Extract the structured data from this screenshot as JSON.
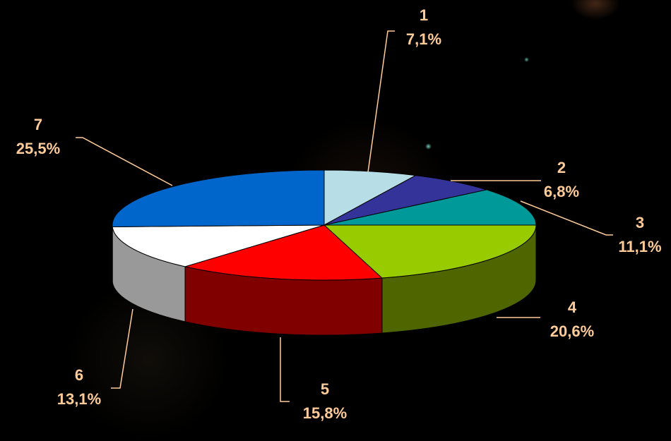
{
  "chart_data": {
    "type": "pie",
    "style": "3d",
    "categories": [
      "1",
      "2",
      "3",
      "4",
      "5",
      "6",
      "7"
    ],
    "values": [
      7.1,
      6.8,
      11.1,
      20.6,
      15.8,
      13.1,
      25.5
    ],
    "value_labels": [
      "7,1%",
      "6,8%",
      "11,1%",
      "20,6%",
      "15,8%",
      "13,1%",
      "25,5%"
    ],
    "colors": [
      "#B7DDE6",
      "#333399",
      "#009999",
      "#99CC00",
      "#FF0000",
      "#FFFFFF",
      "#0066CC"
    ],
    "side_colors": [
      "#8FAFB7",
      "#1C1C66",
      "#006666",
      "#4F6600",
      "#800000",
      "#999999",
      "#003F80"
    ],
    "label_color": "#FFCC99",
    "leader_color": "#FFCC99",
    "background": "#000000",
    "legend": false,
    "title": ""
  }
}
